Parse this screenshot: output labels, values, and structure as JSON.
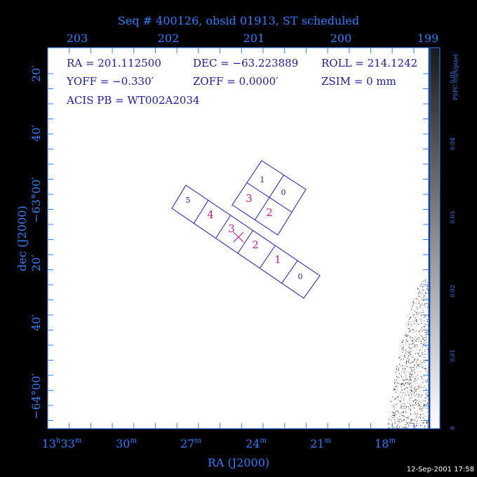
{
  "header": {
    "title": "Seq # 400126, obsid 01913, ST scheduled"
  },
  "info": {
    "ra": "RA = 201.112500",
    "dec": "DEC = −63.223889",
    "roll": "ROLL = 214.1242",
    "yoff": "YOFF =  −0.330′",
    "zoff": "ZOFF =  0.0000′",
    "zsim": "ZSIM = 0 mm",
    "acis": "ACIS PB = WT002A2034"
  },
  "top_axis": {
    "labels": [
      "203",
      "202",
      "201",
      "200",
      "199"
    ]
  },
  "bottom_axis": {
    "title": "RA (J2000)",
    "labels": [
      {
        "main": "13",
        "sup1": "h",
        "main2": "33",
        "sup2": "m"
      },
      {
        "main": "30",
        "sup": "m"
      },
      {
        "main": "27",
        "sup": "m"
      },
      {
        "main": "24",
        "sup": "m"
      },
      {
        "main": "21",
        "sup": "m"
      },
      {
        "main": "18",
        "sup": "m"
      }
    ]
  },
  "left_axis": {
    "title": "dec (J2000)",
    "labels": [
      "20′",
      "40′",
      "−63°00′",
      "20′",
      "40′",
      "−64°00′"
    ]
  },
  "colorbar": {
    "title": "PSPC cts/s/pixel",
    "labels": [
      "0",
      "0.01",
      "0.02",
      "0.03",
      "0.04",
      "0.05"
    ]
  },
  "chips": {
    "row": [
      "5",
      "4",
      "3",
      "2",
      "1",
      "0"
    ],
    "square": [
      "1",
      "0",
      "3",
      "2"
    ]
  },
  "footer": {
    "timestamp": "12-Sep-2001 17:58"
  }
}
